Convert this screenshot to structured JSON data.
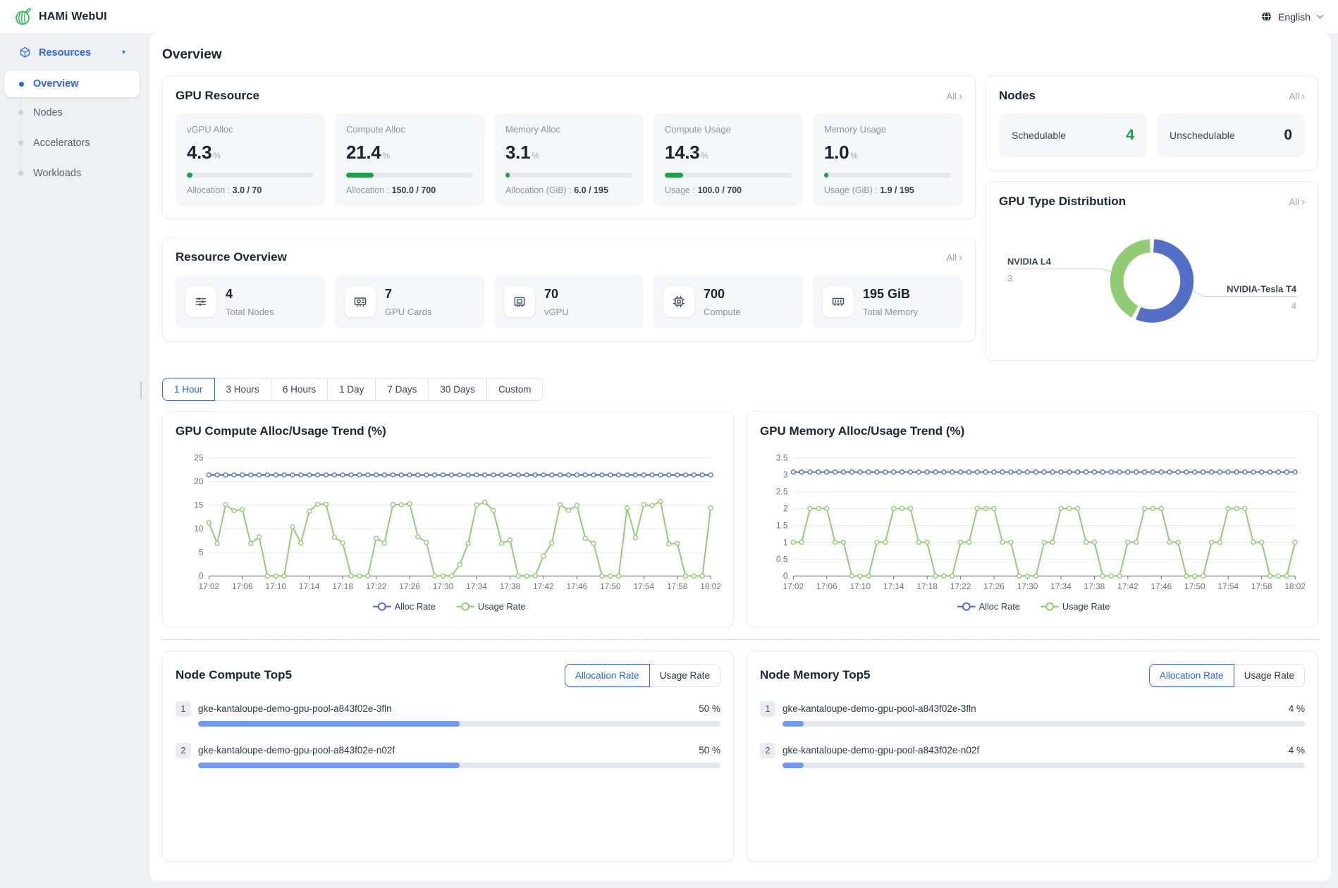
{
  "topbar": {
    "app_title": "HAMi WebUI",
    "language": "English"
  },
  "icons": {
    "chevron_right": "›",
    "caret_down": "▾"
  },
  "colors": {
    "accent_blue": "#2d64e8",
    "progress_green": "#16a34a",
    "bar_blue": "#6e9af5",
    "chart_blue": "#5470c6",
    "chart_green": "#91cc75",
    "schedulable_green": "#18a34b"
  },
  "sidebar": {
    "group_label": "Resources",
    "items": [
      {
        "label": "Overview",
        "active": true
      },
      {
        "label": "Nodes",
        "active": false
      },
      {
        "label": "Accelerators",
        "active": false
      },
      {
        "label": "Workloads",
        "active": false
      }
    ]
  },
  "page": {
    "title": "Overview"
  },
  "gpu_resource": {
    "title": "GPU Resource",
    "all_label": "All",
    "metrics": [
      {
        "label": "vGPU Alloc",
        "value": "4.3",
        "unit": "%",
        "percent": 4.3,
        "detail_label": "Allocation :",
        "detail_value": "3.0 / 70"
      },
      {
        "label": "Compute Alloc",
        "value": "21.4",
        "unit": "%",
        "percent": 21.4,
        "detail_label": "Allocation :",
        "detail_value": "150.0 / 700"
      },
      {
        "label": "Memory Alloc",
        "value": "3.1",
        "unit": "%",
        "percent": 3.1,
        "detail_label": "Allocation (GiB) :",
        "detail_value": "6.0 / 195"
      },
      {
        "label": "Compute Usage",
        "value": "14.3",
        "unit": "%",
        "percent": 14.3,
        "detail_label": "Usage :",
        "detail_value": "100.0 / 700"
      },
      {
        "label": "Memory Usage",
        "value": "1.0",
        "unit": "%",
        "percent": 1.0,
        "detail_label": "Usage (GiB) :",
        "detail_value": "1.9 / 195"
      }
    ]
  },
  "nodes_card": {
    "title": "Nodes",
    "all_label": "All",
    "stats": [
      {
        "label": "Schedulable",
        "value": "4",
        "color": "#18a34b"
      },
      {
        "label": "Unschedulable",
        "value": "0",
        "color": "#1a2332"
      }
    ]
  },
  "gpu_type_card": {
    "title": "GPU Type Distribution",
    "all_label": "All"
  },
  "resource_overview": {
    "title": "Resource Overview",
    "all_label": "All",
    "items": [
      {
        "value": "4",
        "label": "Total Nodes",
        "icon": "nodes-icon"
      },
      {
        "value": "7",
        "label": "GPU Cards",
        "icon": "gpu-card-icon"
      },
      {
        "value": "70",
        "label": "vGPU",
        "icon": "vgpu-icon"
      },
      {
        "value": "700",
        "label": "Compute",
        "icon": "compute-icon"
      },
      {
        "value": "195 GiB",
        "label": "Total Memory",
        "icon": "memory-icon"
      }
    ]
  },
  "time_tabs": {
    "options": [
      "1 Hour",
      "3 Hours",
      "6 Hours",
      "1 Day",
      "7 Days",
      "30 Days",
      "Custom"
    ],
    "selected": "1 Hour"
  },
  "chart_data": [
    {
      "type": "pie",
      "donut": true,
      "title": "GPU Type Distribution",
      "slices": [
        {
          "label": "NVIDIA L4",
          "value": 3,
          "color": "#91cc75"
        },
        {
          "label": "NVIDIA-Tesla T4",
          "value": 4,
          "color": "#5470c6"
        }
      ],
      "draw_order": [
        1,
        0
      ],
      "legend_position": "outside-labels"
    },
    {
      "type": "line",
      "title": "GPU Compute Alloc/Usage Trend (%)",
      "ylim": [
        0,
        25
      ],
      "yticks": [
        0,
        5,
        10,
        15,
        20,
        25
      ],
      "n_points": 61,
      "tick_every": 4,
      "x_ticks": [
        "17:02",
        "17:06",
        "17:10",
        "17:14",
        "17:18",
        "17:22",
        "17:26",
        "17:30",
        "17:34",
        "17:38",
        "17:42",
        "17:46",
        "17:50",
        "17:54",
        "17:58",
        "18:02"
      ],
      "grid": true,
      "legend_position": "bottom",
      "series": [
        {
          "name": "Alloc Rate",
          "color": "#5470c6",
          "constant": 21.4
        },
        {
          "name": "Usage Rate",
          "color": "#91cc75",
          "values": [
            11.3,
            6.9,
            15.1,
            13.8,
            14.1,
            6.9,
            8.3,
            0,
            0,
            0,
            10.4,
            7,
            13.7,
            15.2,
            15.2,
            8.2,
            7,
            0,
            0,
            0,
            8,
            7,
            15.1,
            15.1,
            15.3,
            8.3,
            7.1,
            0,
            0,
            0,
            2.4,
            6.9,
            15,
            15.6,
            13.9,
            6.9,
            7.6,
            0,
            0,
            0,
            4.2,
            7,
            15.1,
            13.9,
            14.9,
            8,
            6.9,
            0,
            0,
            0,
            14.4,
            8.1,
            15.1,
            14.9,
            15.8,
            6.8,
            6.9,
            0,
            0,
            0,
            14.4
          ]
        }
      ]
    },
    {
      "type": "line",
      "title": "GPU Memory Alloc/Usage Trend (%)",
      "ylim": [
        0,
        3.5
      ],
      "yticks": [
        0,
        0.5,
        1,
        1.5,
        2,
        2.5,
        3,
        3.5
      ],
      "n_points": 61,
      "tick_every": 4,
      "x_ticks": [
        "17:02",
        "17:06",
        "17:10",
        "17:14",
        "17:18",
        "17:22",
        "17:26",
        "17:30",
        "17:34",
        "17:38",
        "17:42",
        "17:46",
        "17:50",
        "17:54",
        "17:58",
        "18:02"
      ],
      "grid": true,
      "legend_position": "bottom",
      "series": [
        {
          "name": "Alloc Rate",
          "color": "#5470c6",
          "constant": 3.08
        },
        {
          "name": "Usage Rate",
          "color": "#91cc75",
          "values": [
            1,
            1,
            2,
            2,
            2,
            1,
            1,
            0,
            0,
            0,
            1,
            1,
            2,
            2,
            2,
            1,
            1,
            0,
            0,
            0,
            1,
            1,
            2,
            2,
            2,
            1,
            1,
            0,
            0,
            0,
            1,
            1,
            2,
            2,
            2,
            1,
            1,
            0,
            0,
            0,
            1,
            1,
            2,
            2,
            2,
            1,
            1,
            0,
            0,
            0,
            1,
            1,
            2,
            2,
            2,
            1,
            1,
            0,
            0,
            0,
            1
          ]
        }
      ]
    }
  ],
  "top5": [
    {
      "title": "Node Compute Top5",
      "toggles": [
        "Allocation Rate",
        "Usage Rate"
      ],
      "selected": "Allocation Rate",
      "rows": [
        {
          "rank": "1",
          "name": "gke-kantaloupe-demo-gpu-pool-a843f02e-3fln",
          "value": "50 %",
          "percent": 50
        },
        {
          "rank": "2",
          "name": "gke-kantaloupe-demo-gpu-pool-a843f02e-n02f",
          "value": "50 %",
          "percent": 50
        }
      ]
    },
    {
      "title": "Node Memory Top5",
      "toggles": [
        "Allocation Rate",
        "Usage Rate"
      ],
      "selected": "Allocation Rate",
      "rows": [
        {
          "rank": "1",
          "name": "gke-kantaloupe-demo-gpu-pool-a843f02e-3fln",
          "value": "4 %",
          "percent": 4
        },
        {
          "rank": "2",
          "name": "gke-kantaloupe-demo-gpu-pool-a843f02e-n02f",
          "value": "4 %",
          "percent": 4
        }
      ]
    }
  ]
}
